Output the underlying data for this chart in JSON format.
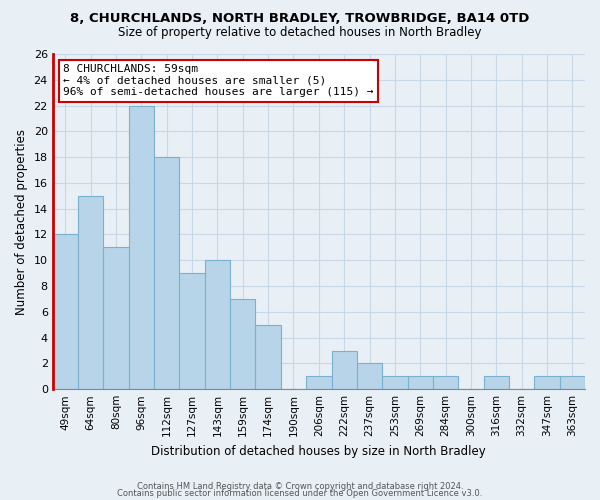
{
  "title1": "8, CHURCHLANDS, NORTH BRADLEY, TROWBRIDGE, BA14 0TD",
  "title2": "Size of property relative to detached houses in North Bradley",
  "xlabel": "Distribution of detached houses by size in North Bradley",
  "ylabel": "Number of detached properties",
  "categories": [
    "49sqm",
    "64sqm",
    "80sqm",
    "96sqm",
    "112sqm",
    "127sqm",
    "143sqm",
    "159sqm",
    "174sqm",
    "190sqm",
    "206sqm",
    "222sqm",
    "237sqm",
    "253sqm",
    "269sqm",
    "284sqm",
    "300sqm",
    "316sqm",
    "332sqm",
    "347sqm",
    "363sqm"
  ],
  "values": [
    12,
    15,
    11,
    22,
    18,
    9,
    10,
    7,
    5,
    0,
    1,
    3,
    2,
    1,
    1,
    1,
    0,
    1,
    0,
    1,
    1
  ],
  "bar_color": "#b8d4e8",
  "bar_edge_color": "#7ab0d0",
  "annotation_box_color": "#ffffff",
  "annotation_box_edge": "#cc0000",
  "annotation_line1": "8 CHURCHLANDS: 59sqm",
  "annotation_line2": "← 4% of detached houses are smaller (5)",
  "annotation_line3": "96% of semi-detached houses are larger (115) →",
  "ylim": [
    0,
    26
  ],
  "yticks": [
    0,
    2,
    4,
    6,
    8,
    10,
    12,
    14,
    16,
    18,
    20,
    22,
    24,
    26
  ],
  "footer1": "Contains HM Land Registry data © Crown copyright and database right 2024.",
  "footer2": "Contains public sector information licensed under the Open Government Licence v3.0.",
  "grid_color": "#c8d8e8",
  "background_color": "#e8eff5"
}
